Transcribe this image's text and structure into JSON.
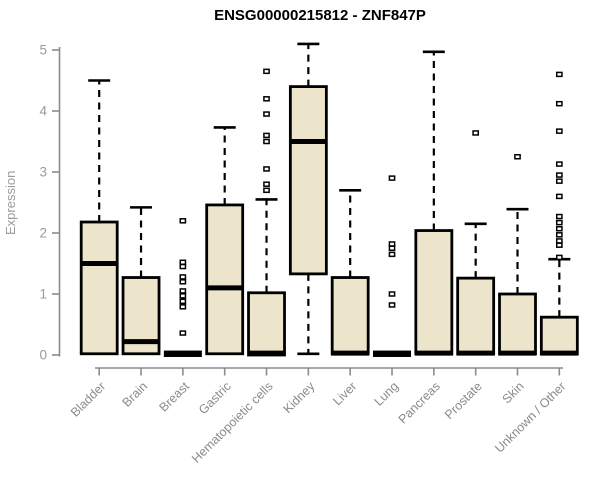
{
  "title": "ENSG00000215812 - ZNF847P",
  "chart_data": {
    "type": "boxplot",
    "title": "ENSG00000215812 - ZNF847P",
    "ylabel": "Expression",
    "xlabel": "",
    "ylim": [
      0,
      5
    ],
    "yticks": [
      0,
      1,
      2,
      3,
      4,
      5
    ],
    "grid": false,
    "legend": "none",
    "box_fill": "#ece5cb",
    "box_stroke": "#000000",
    "axis_color": "#8c8c8c",
    "tick_label_color": "#9b9b9b",
    "category_label_color": "#8a8a8a",
    "categories": [
      "Bladder",
      "Brain",
      "Breast",
      "Gastric",
      "Hematopoietic cells",
      "Kidney",
      "Liver",
      "Lung",
      "Pancreas",
      "Prostate",
      "Skin",
      "Unknown / Other"
    ],
    "boxes": [
      {
        "label": "Bladder",
        "whisker_low": null,
        "q1": 0.02,
        "median": 1.5,
        "q3": 2.18,
        "whisker_high": 4.5,
        "outliers": []
      },
      {
        "label": "Brain",
        "whisker_low": null,
        "q1": 0.02,
        "median": 0.22,
        "q3": 1.27,
        "whisker_high": 2.42,
        "outliers": []
      },
      {
        "label": "Breast",
        "whisker_low": null,
        "q1": 0.0,
        "median": 0.02,
        "q3": 0.04,
        "whisker_high": null,
        "outliers": [
          2.2,
          1.52,
          1.45,
          1.28,
          1.2,
          1.05,
          0.97,
          0.88,
          0.79,
          0.36
        ]
      },
      {
        "label": "Gastric",
        "whisker_low": null,
        "q1": 0.02,
        "median": 1.1,
        "q3": 2.46,
        "whisker_high": 3.73,
        "outliers": []
      },
      {
        "label": "Hematopoietic cells",
        "whisker_low": null,
        "q1": 0.0,
        "median": 0.03,
        "q3": 1.02,
        "whisker_high": 2.55,
        "outliers": [
          4.65,
          4.2,
          3.95,
          3.6,
          3.5,
          3.05,
          2.8,
          2.7
        ]
      },
      {
        "label": "Kidney",
        "whisker_low": 0.02,
        "q1": 1.33,
        "median": 3.5,
        "q3": 4.4,
        "whisker_high": 5.1,
        "outliers": []
      },
      {
        "label": "Liver",
        "whisker_low": null,
        "q1": 0.02,
        "median": 0.03,
        "q3": 1.27,
        "whisker_high": 2.7,
        "outliers": []
      },
      {
        "label": "Lung",
        "whisker_low": null,
        "q1": 0.0,
        "median": 0.02,
        "q3": 0.04,
        "whisker_high": null,
        "outliers": [
          2.9,
          1.82,
          1.75,
          1.65,
          1.0,
          0.82
        ]
      },
      {
        "label": "Pancreas",
        "whisker_low": null,
        "q1": 0.02,
        "median": 0.03,
        "q3": 2.04,
        "whisker_high": 4.97,
        "outliers": []
      },
      {
        "label": "Prostate",
        "whisker_low": null,
        "q1": 0.02,
        "median": 0.03,
        "q3": 1.26,
        "whisker_high": 2.15,
        "outliers": [
          3.64
        ]
      },
      {
        "label": "Skin",
        "whisker_low": null,
        "q1": 0.02,
        "median": 0.03,
        "q3": 1.0,
        "whisker_high": 2.39,
        "outliers": [
          3.25
        ]
      },
      {
        "label": "Unknown / Other",
        "whisker_low": null,
        "q1": 0.02,
        "median": 0.03,
        "q3": 0.62,
        "whisker_high": 1.57,
        "outliers": [
          4.6,
          4.12,
          3.67,
          3.13,
          2.95,
          2.85,
          2.6,
          2.27,
          2.17,
          2.07,
          1.97,
          1.87,
          1.8,
          1.6
        ]
      }
    ]
  }
}
